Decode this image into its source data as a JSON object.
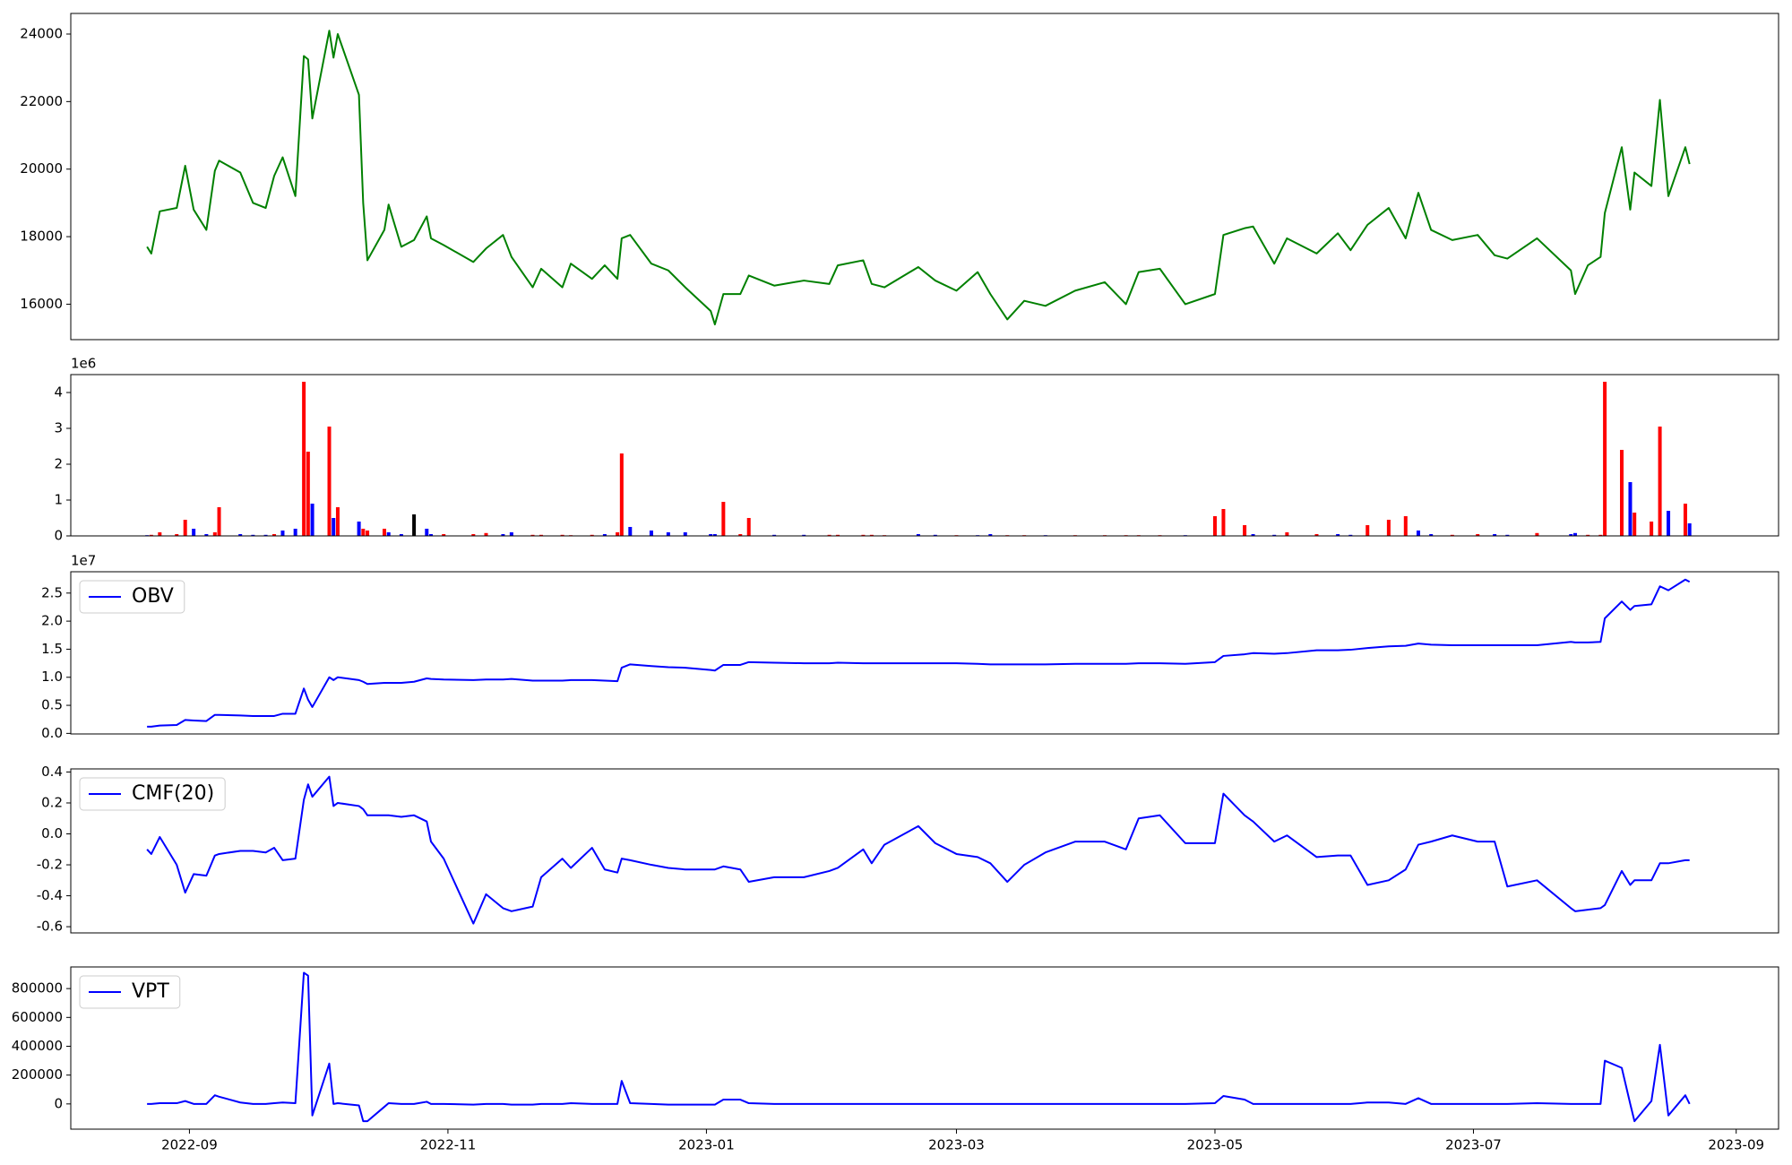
{
  "chart_data": {
    "x": [
      "2022-08-22",
      "2022-08-23",
      "2022-08-25",
      "2022-08-29",
      "2022-08-31",
      "2022-09-02",
      "2022-09-05",
      "2022-09-07",
      "2022-09-08",
      "2022-09-13",
      "2022-09-16",
      "2022-09-19",
      "2022-09-21",
      "2022-09-23",
      "2022-09-26",
      "2022-09-28",
      "2022-09-29",
      "2022-09-30",
      "2022-10-04",
      "2022-10-05",
      "2022-10-06",
      "2022-10-11",
      "2022-10-12",
      "2022-10-13",
      "2022-10-17",
      "2022-10-18",
      "2022-10-21",
      "2022-10-24",
      "2022-10-27",
      "2022-10-28",
      "2022-10-31",
      "2022-11-07",
      "2022-11-10",
      "2022-11-14",
      "2022-11-16",
      "2022-11-21",
      "2022-11-23",
      "2022-11-28",
      "2022-11-30",
      "2022-12-05",
      "2022-12-08",
      "2022-12-11",
      "2022-12-12",
      "2022-12-14",
      "2022-12-19",
      "2022-12-23",
      "2022-12-27",
      "2023-01-02",
      "2023-01-03",
      "2023-01-05",
      "2023-01-09",
      "2023-01-11",
      "2023-01-17",
      "2023-01-24",
      "2023-01-30",
      "2023-02-01",
      "2023-02-07",
      "2023-02-09",
      "2023-02-12",
      "2023-02-20",
      "2023-02-24",
      "2023-03-01",
      "2023-03-06",
      "2023-03-09",
      "2023-03-13",
      "2023-03-17",
      "2023-03-22",
      "2023-03-29",
      "2023-04-05",
      "2023-04-10",
      "2023-04-13",
      "2023-04-18",
      "2023-04-24",
      "2023-05-01",
      "2023-05-03",
      "2023-05-08",
      "2023-05-10",
      "2023-05-15",
      "2023-05-18",
      "2023-05-25",
      "2023-05-30",
      "2023-06-02",
      "2023-06-06",
      "2023-06-11",
      "2023-06-15",
      "2023-06-18",
      "2023-06-21",
      "2023-06-26",
      "2023-07-02",
      "2023-07-06",
      "2023-07-09",
      "2023-07-16",
      "2023-07-24",
      "2023-07-25",
      "2023-07-28",
      "2023-07-31",
      "2023-08-01",
      "2023-08-05",
      "2023-08-07",
      "2023-08-08",
      "2023-08-12",
      "2023-08-14",
      "2023-08-16",
      "2023-08-20",
      "2023-08-21"
    ],
    "xlim": [
      "2022-08-04",
      "2023-09-11"
    ],
    "xticks": [
      {
        "value": "2022-09-01",
        "label": "2022-09"
      },
      {
        "value": "2022-11-01",
        "label": "2022-11"
      },
      {
        "value": "2023-01-01",
        "label": "2023-01"
      },
      {
        "value": "2023-03-01",
        "label": "2023-03"
      },
      {
        "value": "2023-05-01",
        "label": "2023-05"
      },
      {
        "value": "2023-07-01",
        "label": "2023-07"
      },
      {
        "value": "2023-09-01",
        "label": "2023-09"
      }
    ],
    "panels": [
      {
        "type": "line",
        "series": [
          {
            "color": "#008000",
            "values": [
              17700,
              17500,
              18750,
              18850,
              20100,
              18800,
              18200,
              19950,
              20250,
              19900,
              19000,
              18850,
              19800,
              20350,
              19200,
              23350,
              23250,
              21500,
              24100,
              23300,
              24000,
              22200,
              19000,
              17300,
              18200,
              18950,
              17700,
              17900,
              18600,
              17950,
              17750,
              17250,
              17650,
              18050,
              17400,
              16500,
              17050,
              16500,
              17200,
              16750,
              17150,
              16750,
              17950,
              18050,
              17200,
              17000,
              16500,
              15800,
              15400,
              16300,
              16300,
              16850,
              16550,
              16700,
              16600,
              17150,
              17300,
              16600,
              16500,
              17100,
              16700,
              16400,
              16950,
              16300,
              15550,
              16100,
              15950,
              16400,
              16650,
              16000,
              16950,
              17050,
              16000,
              16300,
              18050,
              18250,
              18300,
              17200,
              17950,
              17500,
              18100,
              17600,
              18350,
              18850,
              17950,
              19300,
              18200,
              17900,
              18050,
              17450,
              17350,
              17950,
              17000,
              16300,
              17150,
              17400,
              18700,
              20650,
              18800,
              19900,
              19500,
              22050,
              19200,
              20650,
              20150
            ]
          }
        ],
        "ylim": [
          14950,
          24610
        ],
        "yticks": [
          16000,
          18000,
          20000,
          22000,
          24000
        ]
      },
      {
        "type": "bar",
        "offset_label": "1e6",
        "values": [
          0.02,
          0.03,
          0.1,
          0.05,
          0.45,
          0.2,
          0.05,
          0.1,
          0.8,
          0.05,
          0.03,
          0.03,
          0.05,
          0.15,
          0.2,
          4.3,
          2.35,
          0.9,
          3.05,
          0.5,
          0.8,
          0.4,
          0.2,
          0.15,
          0.2,
          0.1,
          0.05,
          0.6,
          0.2,
          0.05,
          0.05,
          0.05,
          0.08,
          0.05,
          0.1,
          0.03,
          0.03,
          0.03,
          0.02,
          0.03,
          0.05,
          0.1,
          2.3,
          0.25,
          0.15,
          0.1,
          0.1,
          0.05,
          0.05,
          0.95,
          0.05,
          0.5,
          0.03,
          0.03,
          0.03,
          0.03,
          0.03,
          0.03,
          0.02,
          0.05,
          0.03,
          0.02,
          0.02,
          0.05,
          0.02,
          0.02,
          0.02,
          0.02,
          0.02,
          0.02,
          0.02,
          0.02,
          0.02,
          0.55,
          0.75,
          0.3,
          0.05,
          0.03,
          0.1,
          0.05,
          0.05,
          0.03,
          0.3,
          0.45,
          0.55,
          0.15,
          0.05,
          0.03,
          0.05,
          0.05,
          0.03,
          0.08,
          0.05,
          0.08,
          0.03,
          0.03,
          4.3,
          2.4,
          1.5,
          0.65,
          0.4,
          3.05,
          0.7,
          0.9,
          0.35
        ],
        "colors": [
          "blue",
          "red",
          "red",
          "red",
          "red",
          "blue",
          "blue",
          "red",
          "red",
          "blue",
          "blue",
          "blue",
          "red",
          "blue",
          "blue",
          "red",
          "red",
          "blue",
          "red",
          "blue",
          "red",
          "blue",
          "red",
          "red",
          "red",
          "blue",
          "blue",
          "black",
          "blue",
          "blue",
          "red",
          "red",
          "red",
          "blue",
          "blue",
          "red",
          "red",
          "red",
          "red",
          "red",
          "blue",
          "red",
          "red",
          "blue",
          "blue",
          "blue",
          "blue",
          "blue",
          "blue",
          "red",
          "red",
          "red",
          "blue",
          "blue",
          "red",
          "red",
          "red",
          "red",
          "red",
          "blue",
          "blue",
          "red",
          "blue",
          "blue",
          "red",
          "red",
          "blue",
          "red",
          "red",
          "red",
          "red",
          "red",
          "blue",
          "red",
          "red",
          "red",
          "blue",
          "blue",
          "red",
          "red",
          "blue",
          "blue",
          "red",
          "red",
          "red",
          "blue",
          "blue",
          "red",
          "red",
          "blue",
          "blue",
          "red",
          "blue",
          "blue",
          "red",
          "red",
          "red",
          "red",
          "blue",
          "red",
          "red",
          "red",
          "blue",
          "red",
          "blue"
        ],
        "ylim": [
          0,
          4.5
        ],
        "yticks": [
          0,
          1,
          2,
          3,
          4
        ]
      },
      {
        "type": "line",
        "offset_label": "1e7",
        "legend": "upper left",
        "series": [
          {
            "name": "OBV",
            "color": "#0000ff",
            "values": [
              0.12,
              0.12,
              0.14,
              0.15,
              0.24,
              0.23,
              0.22,
              0.33,
              0.33,
              0.32,
              0.31,
              0.31,
              0.31,
              0.35,
              0.35,
              0.8,
              0.6,
              0.47,
              1.0,
              0.95,
              1.0,
              0.95,
              0.92,
              0.88,
              0.9,
              0.9,
              0.9,
              0.92,
              0.98,
              0.97,
              0.96,
              0.95,
              0.96,
              0.96,
              0.97,
              0.94,
              0.94,
              0.94,
              0.95,
              0.95,
              0.94,
              0.93,
              1.17,
              1.23,
              1.2,
              1.18,
              1.17,
              1.13,
              1.12,
              1.22,
              1.22,
              1.27,
              1.26,
              1.25,
              1.25,
              1.26,
              1.25,
              1.25,
              1.25,
              1.25,
              1.25,
              1.25,
              1.24,
              1.23,
              1.23,
              1.23,
              1.23,
              1.24,
              1.24,
              1.24,
              1.25,
              1.25,
              1.24,
              1.27,
              1.38,
              1.41,
              1.43,
              1.42,
              1.43,
              1.48,
              1.48,
              1.49,
              1.52,
              1.55,
              1.56,
              1.6,
              1.58,
              1.57,
              1.57,
              1.57,
              1.57,
              1.57,
              1.63,
              1.62,
              1.62,
              1.63,
              2.05,
              2.35,
              2.2,
              2.27,
              2.3,
              2.62,
              2.55,
              2.74,
              2.7
            ]
          }
        ],
        "ylim": [
          -0.01,
          2.88
        ],
        "yticks": [
          {
            "value": 0,
            "label": "0.0"
          },
          0.5,
          {
            "value": 1,
            "label": "1.0"
          },
          1.5,
          {
            "value": 2,
            "label": "2.0"
          },
          2.5
        ]
      },
      {
        "type": "line",
        "legend": "upper left",
        "series": [
          {
            "name": "CMF(20)",
            "color": "#0000ff",
            "values": [
              -0.1,
              -0.13,
              -0.02,
              -0.2,
              -0.38,
              -0.26,
              -0.27,
              -0.14,
              -0.13,
              -0.11,
              -0.11,
              -0.12,
              -0.09,
              -0.17,
              -0.16,
              0.22,
              0.32,
              0.24,
              0.37,
              0.18,
              0.2,
              0.18,
              0.16,
              0.12,
              0.12,
              0.12,
              0.11,
              0.12,
              0.08,
              -0.05,
              -0.16,
              -0.58,
              -0.39,
              -0.48,
              -0.5,
              -0.47,
              -0.28,
              -0.16,
              -0.22,
              -0.09,
              -0.23,
              -0.25,
              -0.16,
              -0.17,
              -0.2,
              -0.22,
              -0.23,
              -0.23,
              -0.23,
              -0.21,
              -0.23,
              -0.31,
              -0.28,
              -0.28,
              -0.24,
              -0.22,
              -0.1,
              -0.19,
              -0.07,
              0.05,
              -0.06,
              -0.13,
              -0.15,
              -0.19,
              -0.31,
              -0.2,
              -0.12,
              -0.05,
              -0.05,
              -0.1,
              0.1,
              0.12,
              -0.06,
              -0.06,
              0.26,
              0.12,
              0.08,
              -0.05,
              -0.01,
              -0.15,
              -0.14,
              -0.14,
              -0.33,
              -0.3,
              -0.23,
              -0.07,
              -0.05,
              -0.01,
              -0.05,
              -0.05,
              -0.34,
              -0.3,
              -0.48,
              -0.5,
              -0.49,
              -0.48,
              -0.46,
              -0.24,
              -0.33,
              -0.3,
              -0.3,
              -0.19,
              -0.19,
              -0.17,
              -0.17
            ]
          }
        ],
        "ylim": [
          -0.64,
          0.42
        ],
        "yticks": [
          -0.6,
          -0.4,
          -0.2,
          {
            "value": 0,
            "label": "0.0"
          },
          0.2,
          0.4
        ]
      },
      {
        "type": "line",
        "legend": "upper left",
        "series": [
          {
            "name": "VPT",
            "color": "#0000ff",
            "values": [
              0,
              0,
              5000,
              5000,
              20000,
              0,
              0,
              60000,
              50000,
              10000,
              0,
              0,
              5000,
              10000,
              5000,
              910000,
              890000,
              -80000,
              280000,
              0,
              5000,
              -10000,
              -120000,
              -120000,
              -20000,
              5000,
              0,
              0,
              15000,
              0,
              0,
              -5000,
              0,
              0,
              -5000,
              -5000,
              0,
              0,
              5000,
              0,
              0,
              0,
              160000,
              5000,
              0,
              -5000,
              -5000,
              -5000,
              -5000,
              30000,
              30000,
              5000,
              0,
              0,
              0,
              0,
              0,
              0,
              0,
              0,
              0,
              0,
              0,
              0,
              0,
              0,
              0,
              0,
              0,
              0,
              0,
              0,
              0,
              5000,
              55000,
              30000,
              0,
              0,
              0,
              0,
              0,
              0,
              10000,
              10000,
              0,
              40000,
              0,
              0,
              0,
              0,
              0,
              5000,
              0,
              0,
              0,
              0,
              300000,
              250000,
              0,
              -120000,
              20000,
              410000,
              -80000,
              60000,
              0
            ]
          }
        ],
        "ylim": [
          -175000,
          950000
        ],
        "yticks": [
          0,
          200000,
          400000,
          600000,
          800000
        ]
      }
    ]
  }
}
